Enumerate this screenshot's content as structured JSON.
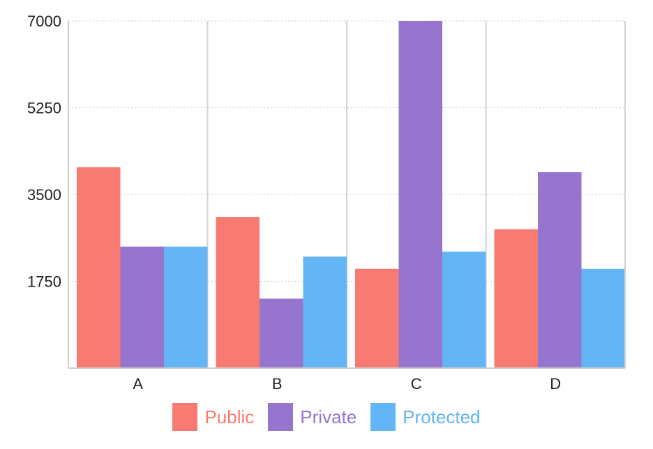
{
  "chart_data": {
    "type": "bar",
    "categories": [
      "A",
      "B",
      "C",
      "D"
    ],
    "series": [
      {
        "name": "Public",
        "color": "#f77b72",
        "values": [
          4050,
          3050,
          2000,
          2800
        ]
      },
      {
        "name": "Private",
        "color": "#9575cd",
        "values": [
          2450,
          1400,
          7000,
          3950
        ]
      },
      {
        "name": "Protected",
        "color": "#63b5f6",
        "values": [
          2450,
          2250,
          2350,
          2000
        ]
      }
    ],
    "y_ticks": [
      "1750",
      "3500",
      "5250",
      "7000"
    ],
    "ylim": [
      0,
      7000
    ],
    "grid": true,
    "legend_position": "bottom"
  }
}
